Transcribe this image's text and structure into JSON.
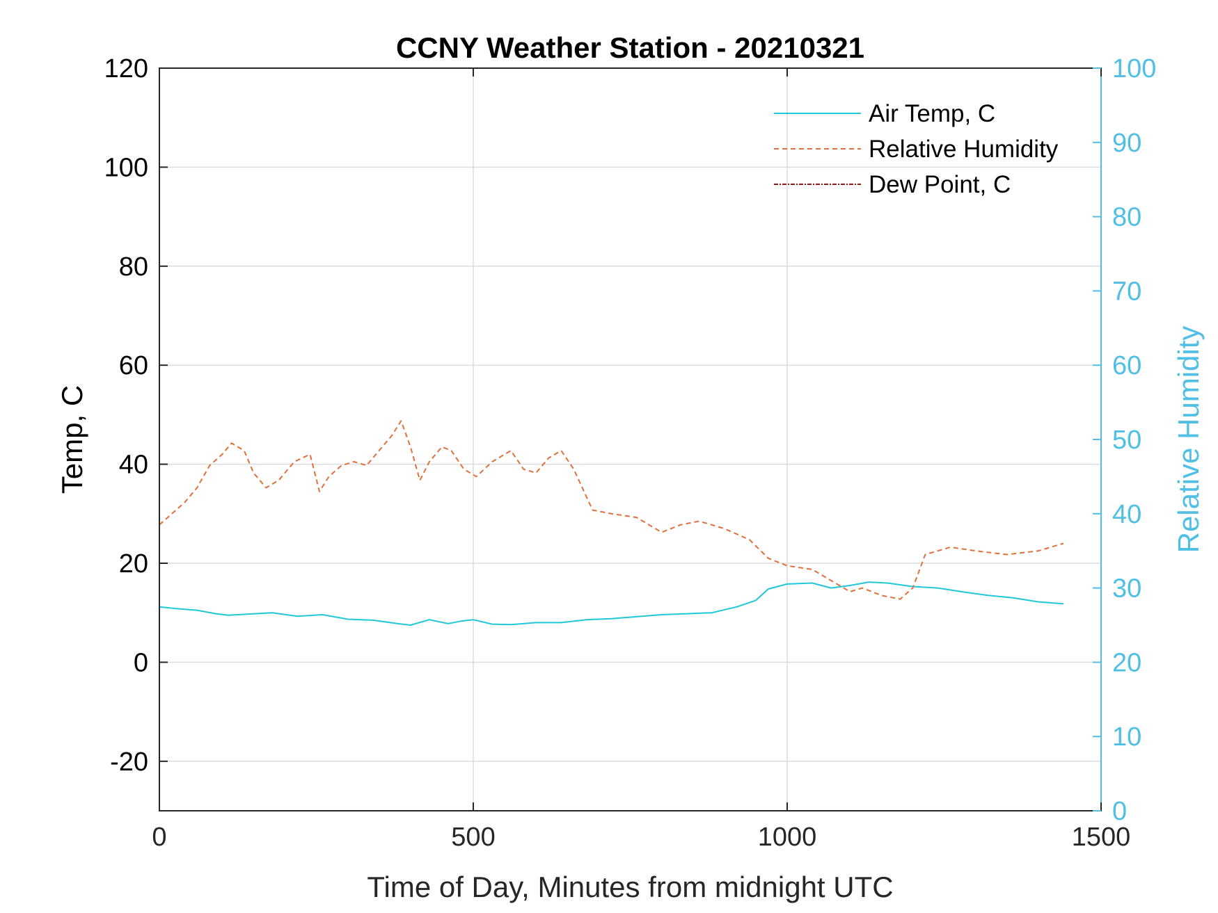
{
  "chart_data": {
    "type": "line",
    "title": "CCNY Weather Station - 20210321",
    "xlabel": "Time of Day, Minutes from midnight UTC",
    "ylabel_left": "Temp, C",
    "ylabel_right": "Relative Humidity",
    "xlim": [
      0,
      1500
    ],
    "ylim_left": [
      -30,
      120
    ],
    "ylim_right": [
      0,
      100
    ],
    "x_ticks": [
      0,
      500,
      1000,
      1500
    ],
    "y_left_ticks": [
      -20,
      0,
      20,
      40,
      60,
      80,
      100,
      120
    ],
    "y_right_ticks": [
      0,
      10,
      20,
      30,
      40,
      50,
      60,
      70,
      80,
      90,
      100
    ],
    "grid": true,
    "legend_position": "top-right",
    "colors": {
      "air_temp": "#1fc8d8",
      "relative_humidity": "#e0703a",
      "dew_point": "#8b1a1a",
      "right_axis": "#4fbfe6",
      "grid": "#dcdcdc"
    },
    "series": [
      {
        "name": "Air Temp, C",
        "axis": "left",
        "style": "solid",
        "x": [
          0,
          30,
          60,
          90,
          110,
          140,
          180,
          220,
          260,
          300,
          340,
          380,
          400,
          430,
          460,
          480,
          500,
          530,
          560,
          600,
          640,
          680,
          720,
          760,
          800,
          840,
          880,
          920,
          950,
          970,
          1000,
          1040,
          1070,
          1100,
          1130,
          1160,
          1200,
          1240,
          1280,
          1320,
          1360,
          1400,
          1440
        ],
        "y": [
          11.2,
          10.8,
          10.5,
          9.8,
          9.5,
          9.7,
          10.0,
          9.3,
          9.6,
          8.7,
          8.5,
          7.8,
          7.5,
          8.6,
          7.8,
          8.3,
          8.6,
          7.7,
          7.6,
          8.0,
          8.0,
          8.6,
          8.8,
          9.2,
          9.6,
          9.8,
          10.0,
          11.2,
          12.5,
          14.8,
          15.8,
          16.0,
          15.0,
          15.5,
          16.2,
          16.0,
          15.3,
          15.0,
          14.2,
          13.5,
          13.0,
          12.2,
          11.8
        ]
      },
      {
        "name": "Relative Humidity",
        "axis": "right",
        "style": "dashed",
        "x": [
          0,
          20,
          40,
          60,
          80,
          100,
          115,
          135,
          150,
          170,
          190,
          215,
          240,
          255,
          270,
          290,
          310,
          330,
          350,
          370,
          385,
          400,
          415,
          430,
          450,
          465,
          485,
          505,
          530,
          560,
          580,
          600,
          620,
          640,
          660,
          690,
          720,
          760,
          800,
          830,
          860,
          900,
          940,
          970,
          1000,
          1040,
          1070,
          1100,
          1120,
          1150,
          1180,
          1200,
          1220,
          1260,
          1300,
          1350,
          1400,
          1440
        ],
        "y": [
          38.5,
          40.0,
          41.5,
          43.5,
          46.5,
          48.0,
          49.5,
          48.5,
          45.5,
          43.5,
          44.5,
          47.0,
          48.0,
          43.0,
          45.0,
          46.5,
          47.0,
          46.5,
          48.5,
          50.5,
          52.5,
          49.0,
          44.5,
          47.0,
          49.0,
          48.5,
          46.0,
          45.0,
          47.0,
          48.5,
          46.0,
          45.5,
          47.5,
          48.5,
          46.0,
          40.5,
          40.0,
          39.5,
          37.5,
          38.5,
          39.0,
          38.0,
          36.5,
          34.0,
          33.0,
          32.5,
          31.0,
          29.5,
          30.0,
          29.0,
          28.5,
          30.0,
          34.5,
          35.5,
          35.0,
          34.5,
          35.0,
          36.0
        ]
      },
      {
        "name": "Dew Point, C",
        "axis": "left",
        "style": "dashdot",
        "x": [],
        "y": []
      }
    ]
  }
}
